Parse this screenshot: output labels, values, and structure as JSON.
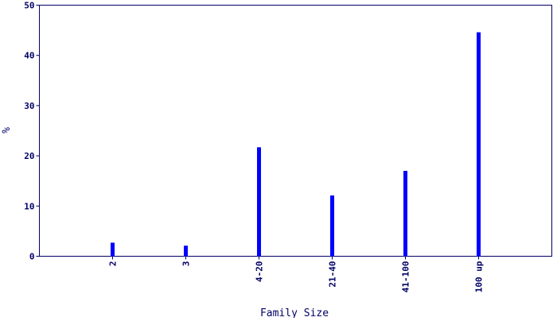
{
  "chart_data": {
    "type": "bar",
    "title": "",
    "xlabel": "Family Size",
    "ylabel": "%",
    "categories": [
      "2",
      "3",
      "4-20",
      "21-40",
      "41-100",
      "100 up"
    ],
    "values": [
      2.7,
      2.1,
      21.7,
      12.1,
      17.0,
      44.6
    ],
    "ylim": [
      0,
      50
    ],
    "yticks": [
      0,
      10,
      20,
      30,
      40,
      50
    ],
    "grid": false,
    "bar_color": "#0000ff",
    "axis_color": "#000066"
  }
}
